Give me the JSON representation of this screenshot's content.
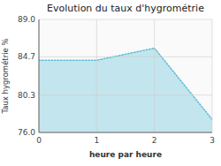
{
  "chart_data": {
    "type": "area",
    "title": "Evolution du taux d'hygrométrie",
    "xlabel": "heure par heure",
    "ylabel": "Taux hygrométrie %",
    "x": [
      0,
      1,
      2,
      3
    ],
    "values": [
      84.3,
      84.3,
      85.7,
      77.5
    ],
    "color": "#5bbcd8",
    "line_style": "dotted",
    "xlim": [
      0,
      3
    ],
    "ylim": [
      76.0,
      89.0
    ],
    "xticks": [
      0,
      1,
      2,
      3
    ],
    "yticks": [
      {
        "value": 76.0,
        "label": "76.0"
      },
      80.3,
      84.7,
      {
        "value": 89.0,
        "label": "89.0"
      }
    ],
    "grid": true
  }
}
